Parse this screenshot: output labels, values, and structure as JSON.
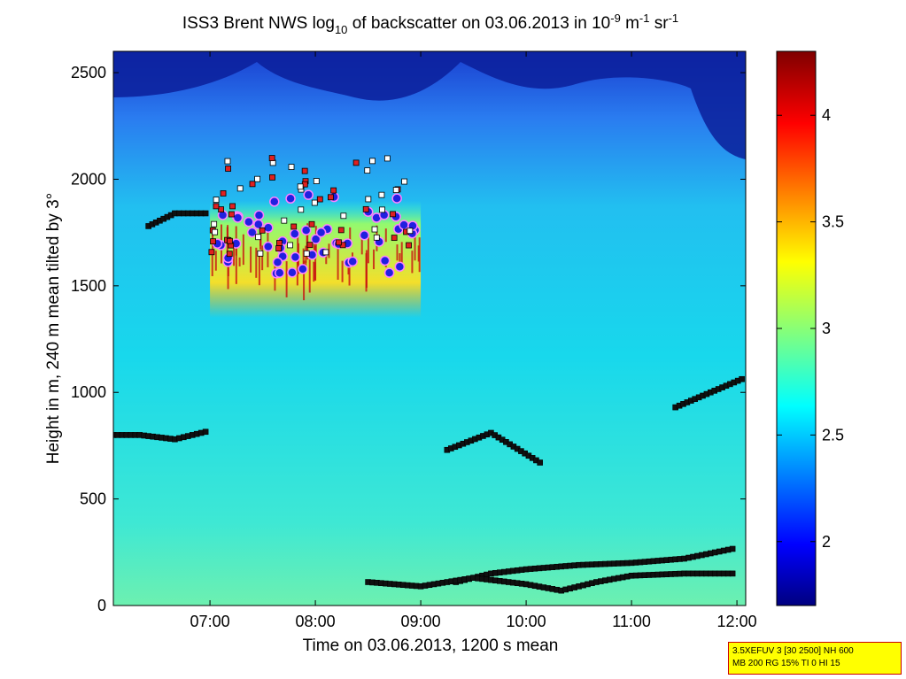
{
  "chart_data": {
    "type": "heatmap",
    "title": {
      "pre": "ISS3 Brent NWS log",
      "sub": "10",
      "mid": " of backscatter on 03.06.2013 in 10",
      "sup1": "-9",
      "mid2": " m",
      "sup2": "-1",
      "mid3": " sr",
      "sup3": "-1"
    },
    "xlabel": "Time on 03.06.2013, 1200 s mean",
    "ylabel": "Height in m, 240 m mean tilted by 3°",
    "xlim": [
      "06:05",
      "12:05"
    ],
    "ylim": [
      0,
      2600
    ],
    "x_ticks": [
      "07:00",
      "08:00",
      "09:00",
      "10:00",
      "11:00",
      "12:00"
    ],
    "y_ticks": [
      0,
      500,
      1000,
      1500,
      2000,
      2500
    ],
    "colorbar": {
      "range": [
        1.7,
        4.3
      ],
      "ticks": [
        2,
        2.5,
        3,
        3.5,
        4
      ],
      "colormap": "jet"
    },
    "background_level": 2.6,
    "cloud_region": {
      "x": [
        "07:00",
        "09:00"
      ],
      "base_m": 1350,
      "top_m": 1900,
      "level": 3.4
    },
    "layers": [
      {
        "name": "low-layer-1",
        "points": [
          [
            "09:20",
            110
          ],
          [
            "09:40",
            150
          ],
          [
            "10:00",
            170
          ],
          [
            "10:30",
            190
          ],
          [
            "11:00",
            200
          ],
          [
            "11:30",
            220
          ],
          [
            "12:00",
            270
          ]
        ]
      },
      {
        "name": "low-layer-2",
        "points": [
          [
            "08:30",
            110
          ],
          [
            "09:00",
            90
          ],
          [
            "09:30",
            130
          ],
          [
            "10:00",
            100
          ],
          [
            "10:20",
            70
          ],
          [
            "10:40",
            110
          ],
          [
            "11:00",
            140
          ],
          [
            "11:30",
            150
          ],
          [
            "12:00",
            150
          ]
        ]
      },
      {
        "name": "layer-800",
        "points": [
          [
            "06:05",
            800
          ],
          [
            "06:20",
            800
          ],
          [
            "06:40",
            780
          ],
          [
            "07:00",
            820
          ]
        ]
      },
      {
        "name": "layer-ridge",
        "points": [
          [
            "09:15",
            730
          ],
          [
            "09:40",
            810
          ],
          [
            "10:10",
            660
          ]
        ]
      },
      {
        "name": "layer-1000",
        "points": [
          [
            "11:25",
            930
          ],
          [
            "11:45",
            1000
          ],
          [
            "12:05",
            1070
          ]
        ]
      },
      {
        "name": "layer-1850",
        "points": [
          [
            "06:25",
            1780
          ],
          [
            "06:40",
            1840
          ],
          [
            "07:00",
            1840
          ]
        ]
      }
    ],
    "info_box": [
      "3.5XEFUV 3 [30 2500] NH 600",
      "MB 200 RG 15% TI 0 HI 15"
    ]
  }
}
